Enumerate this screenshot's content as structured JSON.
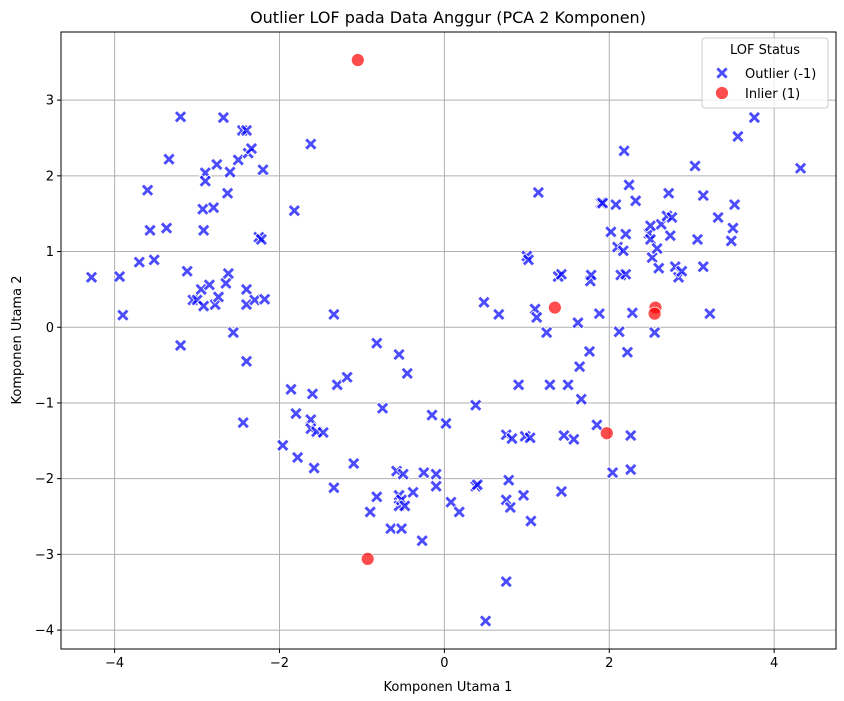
{
  "chart_data": {
    "type": "scatter",
    "title": "Outlier LOF pada Data Anggur (PCA 2 Komponen)",
    "xlabel": "Komponen Utama 1",
    "ylabel": "Komponen Utama 2",
    "xlim": [
      -4.65,
      4.75
    ],
    "ylim": [
      -4.25,
      3.9
    ],
    "xticks": [
      -4,
      -2,
      0,
      2,
      4
    ],
    "yticks": [
      -4,
      -3,
      -2,
      -1,
      0,
      1,
      2,
      3
    ],
    "xtick_labels": [
      "−4",
      "−2",
      "0",
      "2",
      "4"
    ],
    "ytick_labels": [
      "−4",
      "−3",
      "−2",
      "−1",
      "0",
      "1",
      "2",
      "3"
    ],
    "grid": true,
    "legend": {
      "title": "LOF Status",
      "position": "top-right",
      "entries": [
        "Outlier (-1)",
        "Inlier (1)"
      ]
    },
    "colors": {
      "outlier": "#0000ff",
      "inlier": "#ff0000"
    },
    "series": [
      {
        "name": "Outlier (-1)",
        "marker": "x",
        "points": [
          [
            -4.28,
            0.66
          ],
          [
            -3.94,
            0.67
          ],
          [
            -3.9,
            0.16
          ],
          [
            -3.7,
            0.86
          ],
          [
            -3.6,
            1.81
          ],
          [
            -3.57,
            1.28
          ],
          [
            -3.52,
            0.89
          ],
          [
            -3.37,
            1.31
          ],
          [
            -3.34,
            2.22
          ],
          [
            -3.2,
            2.78
          ],
          [
            -3.2,
            -0.24
          ],
          [
            -3.12,
            0.74
          ],
          [
            -3.05,
            0.36
          ],
          [
            -3.0,
            0.36
          ],
          [
            -2.95,
            0.5
          ],
          [
            -2.93,
            1.56
          ],
          [
            -2.92,
            1.28
          ],
          [
            -2.92,
            0.28
          ],
          [
            -2.9,
            2.04
          ],
          [
            -2.9,
            1.93
          ],
          [
            -2.85,
            0.56
          ],
          [
            -2.8,
            1.58
          ],
          [
            -2.78,
            0.3
          ],
          [
            -2.76,
            2.15
          ],
          [
            -2.74,
            0.4
          ],
          [
            -2.68,
            2.77
          ],
          [
            -2.65,
            0.58
          ],
          [
            -2.63,
            1.77
          ],
          [
            -2.62,
            0.71
          ],
          [
            -2.6,
            2.05
          ],
          [
            -2.56,
            -0.07
          ],
          [
            -2.5,
            2.21
          ],
          [
            -2.45,
            2.6
          ],
          [
            -2.44,
            -1.26
          ],
          [
            -2.4,
            2.6
          ],
          [
            -2.4,
            0.5
          ],
          [
            -2.4,
            0.3
          ],
          [
            -2.4,
            -0.45
          ],
          [
            -2.38,
            2.3
          ],
          [
            -2.34,
            2.36
          ],
          [
            -2.3,
            0.36
          ],
          [
            -2.25,
            1.19
          ],
          [
            -2.22,
            1.16
          ],
          [
            -2.2,
            2.08
          ],
          [
            -2.18,
            0.37
          ],
          [
            -1.96,
            -1.56
          ],
          [
            -1.86,
            -0.82
          ],
          [
            -1.82,
            1.54
          ],
          [
            -1.8,
            -1.14
          ],
          [
            -1.78,
            -1.72
          ],
          [
            -1.62,
            2.42
          ],
          [
            -1.62,
            -1.22
          ],
          [
            -1.62,
            -1.34
          ],
          [
            -1.6,
            -0.88
          ],
          [
            -1.58,
            -1.86
          ],
          [
            -1.55,
            -1.38
          ],
          [
            -1.47,
            -1.39
          ],
          [
            -1.34,
            0.17
          ],
          [
            -1.34,
            -2.12
          ],
          [
            -1.3,
            -0.76
          ],
          [
            -1.18,
            -0.66
          ],
          [
            -1.1,
            -1.8
          ],
          [
            -0.9,
            -2.44
          ],
          [
            -0.82,
            -0.21
          ],
          [
            -0.82,
            -2.24
          ],
          [
            -0.75,
            -1.07
          ],
          [
            -0.65,
            -2.66
          ],
          [
            -0.58,
            -1.9
          ],
          [
            -0.55,
            -0.36
          ],
          [
            -0.55,
            -2.22
          ],
          [
            -0.55,
            -2.36
          ],
          [
            -0.52,
            -2.28
          ],
          [
            -0.52,
            -2.66
          ],
          [
            -0.5,
            -1.94
          ],
          [
            -0.48,
            -2.36
          ],
          [
            -0.45,
            -0.61
          ],
          [
            -0.38,
            -2.18
          ],
          [
            -0.27,
            -2.82
          ],
          [
            -0.25,
            -1.92
          ],
          [
            -0.15,
            -1.16
          ],
          [
            -0.1,
            -1.94
          ],
          [
            -0.1,
            -2.1
          ],
          [
            0.02,
            -1.27
          ],
          [
            0.08,
            -2.31
          ],
          [
            0.18,
            -2.44
          ],
          [
            0.38,
            -1.03
          ],
          [
            0.38,
            -2.1
          ],
          [
            0.4,
            -2.08
          ],
          [
            0.48,
            0.33
          ],
          [
            0.5,
            -3.88
          ],
          [
            0.66,
            0.17
          ],
          [
            0.75,
            -1.42
          ],
          [
            0.75,
            -2.28
          ],
          [
            0.75,
            -3.36
          ],
          [
            0.78,
            -2.02
          ],
          [
            0.8,
            -2.38
          ],
          [
            0.82,
            -1.47
          ],
          [
            0.9,
            -0.76
          ],
          [
            0.96,
            -2.22
          ],
          [
            0.98,
            -1.44
          ],
          [
            1.0,
            0.94
          ],
          [
            1.02,
            0.89
          ],
          [
            1.04,
            -1.46
          ],
          [
            1.05,
            -2.56
          ],
          [
            1.1,
            0.24
          ],
          [
            1.12,
            0.13
          ],
          [
            1.14,
            1.78
          ],
          [
            1.24,
            -0.07
          ],
          [
            1.28,
            -0.76
          ],
          [
            1.38,
            0.67
          ],
          [
            1.42,
            0.7
          ],
          [
            1.42,
            -2.17
          ],
          [
            1.45,
            -1.43
          ],
          [
            1.5,
            -0.76
          ],
          [
            1.57,
            -1.48
          ],
          [
            1.62,
            0.06
          ],
          [
            1.64,
            -0.52
          ],
          [
            1.66,
            -0.95
          ],
          [
            1.76,
            -0.32
          ],
          [
            1.77,
            0.61
          ],
          [
            1.78,
            0.69
          ],
          [
            1.85,
            -1.29
          ],
          [
            1.88,
            0.18
          ],
          [
            1.9,
            1.64
          ],
          [
            1.92,
            1.64
          ],
          [
            2.02,
            1.26
          ],
          [
            2.04,
            -1.92
          ],
          [
            2.08,
            1.62
          ],
          [
            2.1,
            1.06
          ],
          [
            2.12,
            -0.06
          ],
          [
            2.14,
            0.69
          ],
          [
            2.17,
            1.01
          ],
          [
            2.18,
            2.33
          ],
          [
            2.2,
            0.7
          ],
          [
            2.2,
            1.23
          ],
          [
            2.22,
            -0.33
          ],
          [
            2.24,
            1.88
          ],
          [
            2.26,
            -1.43
          ],
          [
            2.26,
            -1.88
          ],
          [
            2.28,
            0.19
          ],
          [
            2.32,
            1.67
          ],
          [
            2.48,
            1.24
          ],
          [
            2.5,
            1.34
          ],
          [
            2.5,
            1.16
          ],
          [
            2.52,
            0.92
          ],
          [
            2.55,
            -0.07
          ],
          [
            2.58,
            1.04
          ],
          [
            2.6,
            0.78
          ],
          [
            2.63,
            1.36
          ],
          [
            2.7,
            1.47
          ],
          [
            2.72,
            1.77
          ],
          [
            2.74,
            1.21
          ],
          [
            2.76,
            1.45
          ],
          [
            2.8,
            0.8
          ],
          [
            2.84,
            0.66
          ],
          [
            2.88,
            0.74
          ],
          [
            3.04,
            2.13
          ],
          [
            3.07,
            1.16
          ],
          [
            3.14,
            1.74
          ],
          [
            3.14,
            0.8
          ],
          [
            3.22,
            0.18
          ],
          [
            3.32,
            1.45
          ],
          [
            3.48,
            1.14
          ],
          [
            3.5,
            1.31
          ],
          [
            3.52,
            1.62
          ],
          [
            3.56,
            2.52
          ],
          [
            3.76,
            2.77
          ],
          [
            4.32,
            2.1
          ]
        ]
      },
      {
        "name": "Inlier (1)",
        "marker": "circle",
        "points": [
          [
            -1.05,
            3.53
          ],
          [
            -0.93,
            -3.06
          ],
          [
            1.34,
            0.26
          ],
          [
            1.97,
            -1.4
          ],
          [
            2.56,
            0.26
          ],
          [
            2.55,
            0.18
          ]
        ]
      }
    ]
  }
}
